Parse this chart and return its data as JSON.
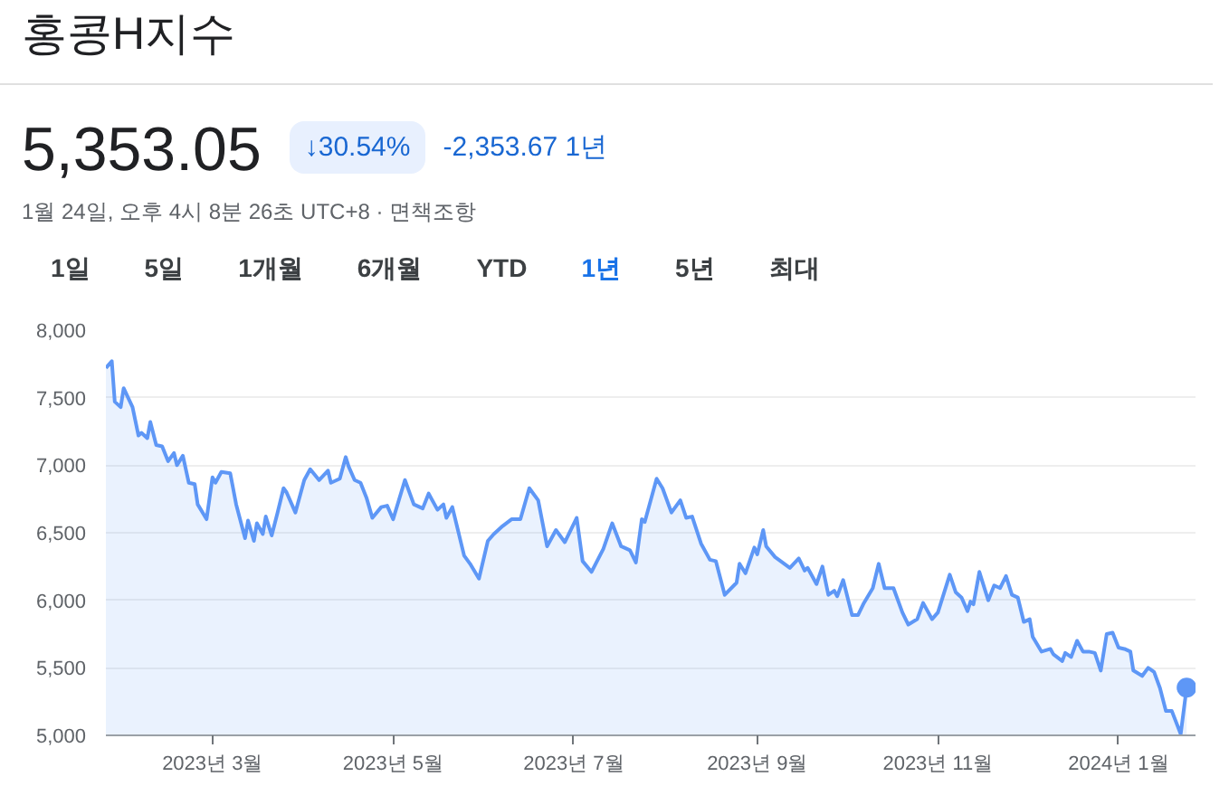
{
  "chart_data": {
    "type": "area",
    "title": "홍콩H지수",
    "subtitle": "1월 24일, 오후 4시 8분 26초 UTC+8 · 면책조항",
    "annotations": [
      "5,353.05",
      "↓30.54%",
      "-2,353.67 1년",
      "1일",
      "5일",
      "1개월",
      "6개월",
      "YTD",
      "1년",
      "5년",
      "최대"
    ],
    "x": [
      "2023-01-24",
      "2023-01-26",
      "2023-01-27",
      "2023-01-29",
      "2023-01-30",
      "2023-02-02",
      "2023-02-04",
      "2023-02-05",
      "2023-02-07",
      "2023-02-08",
      "2023-02-10",
      "2023-02-12",
      "2023-02-14",
      "2023-02-16",
      "2023-02-17",
      "2023-02-19",
      "2023-02-21",
      "2023-02-23",
      "2023-02-24",
      "2023-02-27",
      "2023-03-01",
      "2023-03-02",
      "2023-03-04",
      "2023-03-07",
      "2023-03-09",
      "2023-03-12",
      "2023-03-13",
      "2023-03-15",
      "2023-03-16",
      "2023-03-18",
      "2023-03-19",
      "2023-03-21",
      "2023-03-23",
      "2023-03-25",
      "2023-03-26",
      "2023-03-29",
      "2023-04-01",
      "2023-04-03",
      "2023-04-06",
      "2023-04-09",
      "2023-04-10",
      "2023-04-13",
      "2023-04-15",
      "2023-04-16",
      "2023-04-18",
      "2023-04-20",
      "2023-04-22",
      "2023-04-24",
      "2023-04-27",
      "2023-04-29",
      "2023-05-01",
      "2023-05-05",
      "2023-05-08",
      "2023-05-11",
      "2023-05-13",
      "2023-05-16",
      "2023-05-18",
      "2023-05-19",
      "2023-05-21",
      "2023-05-25",
      "2023-05-27",
      "2023-05-30",
      "2023-06-02",
      "2023-06-04",
      "2023-06-07",
      "2023-06-10",
      "2023-06-13",
      "2023-06-16",
      "2023-06-19",
      "2023-06-22",
      "2023-06-25",
      "2023-06-28",
      "2023-07-02",
      "2023-07-04",
      "2023-07-07",
      "2023-07-11",
      "2023-07-14",
      "2023-07-17",
      "2023-07-20",
      "2023-07-22",
      "2023-07-24",
      "2023-07-25",
      "2023-07-29",
      "2023-07-31",
      "2023-08-03",
      "2023-08-06",
      "2023-08-08",
      "2023-08-10",
      "2023-08-13",
      "2023-08-16",
      "2023-08-18",
      "2023-08-21",
      "2023-08-25",
      "2023-08-26",
      "2023-08-28",
      "2023-08-31",
      "2023-09-01",
      "2023-09-03",
      "2023-09-04",
      "2023-09-07",
      "2023-09-12",
      "2023-09-15",
      "2023-09-17",
      "2023-09-18",
      "2023-09-21",
      "2023-09-23",
      "2023-09-25",
      "2023-09-27",
      "2023-09-28",
      "2023-09-30",
      "2023-10-03",
      "2023-10-05",
      "2023-10-07",
      "2023-10-10",
      "2023-10-12",
      "2023-10-14",
      "2023-10-17",
      "2023-10-20",
      "2023-10-22",
      "2023-10-25",
      "2023-10-27",
      "2023-10-30",
      "2023-11-01",
      "2023-11-05",
      "2023-11-07",
      "2023-11-09",
      "2023-11-11",
      "2023-11-12",
      "2023-11-13",
      "2023-11-15",
      "2023-11-18",
      "2023-11-20",
      "2023-11-22",
      "2023-11-24",
      "2023-11-26",
      "2023-11-28",
      "2023-11-30",
      "2023-12-02",
      "2023-12-03",
      "2023-12-06",
      "2023-12-09",
      "2023-12-10",
      "2023-12-13",
      "2023-12-14",
      "2023-12-16",
      "2023-12-18",
      "2023-12-20",
      "2023-12-22",
      "2023-12-24",
      "2023-12-26",
      "2023-12-28",
      "2023-12-30",
      "2024-01-01",
      "2024-01-03",
      "2024-01-05",
      "2024-01-06",
      "2024-01-09",
      "2024-01-11",
      "2024-01-13",
      "2024-01-15",
      "2024-01-17",
      "2024-01-19",
      "2024-01-22",
      "2024-01-24"
    ],
    "series": [
      {
        "color": "#5e97f6",
        "values": [
          7720,
          7770,
          7470,
          7430,
          7570,
          7430,
          7220,
          7240,
          7200,
          7320,
          7150,
          7140,
          7030,
          7090,
          7000,
          7070,
          6870,
          6860,
          6710,
          6600,
          6910,
          6870,
          6950,
          6940,
          6710,
          6460,
          6590,
          6440,
          6570,
          6490,
          6620,
          6480,
          6650,
          6830,
          6800,
          6650,
          6890,
          6970,
          6890,
          6960,
          6870,
          6900,
          7060,
          6990,
          6890,
          6870,
          6760,
          6610,
          6690,
          6700,
          6600,
          6890,
          6710,
          6680,
          6790,
          6670,
          6710,
          6610,
          6690,
          6330,
          6270,
          6160,
          6440,
          6490,
          6550,
          6600,
          6600,
          6830,
          6740,
          6400,
          6520,
          6430,
          6610,
          6290,
          6210,
          6380,
          6570,
          6400,
          6370,
          6280,
          6600,
          6580,
          6900,
          6830,
          6650,
          6740,
          6610,
          6620,
          6420,
          6300,
          6290,
          6040,
          6130,
          6270,
          6200,
          6390,
          6340,
          6520,
          6400,
          6320,
          6240,
          6310,
          6220,
          6240,
          6120,
          6250,
          6040,
          6070,
          6030,
          6150,
          5890,
          5890,
          5980,
          6090,
          6270,
          6090,
          6090,
          5910,
          5820,
          5860,
          5980,
          5860,
          5910,
          6190,
          6060,
          6020,
          5920,
          5990,
          5970,
          6210,
          6000,
          6110,
          6090,
          6180,
          6040,
          6020,
          5840,
          5860,
          5730,
          5620,
          5640,
          5600,
          5550,
          5610,
          5580,
          5700,
          5620,
          5620,
          5610,
          5480,
          5750,
          5760,
          5650,
          5640,
          5620,
          5480,
          5440,
          5500,
          5470,
          5350,
          5180,
          5180,
          5010,
          5353.05
        ]
      }
    ],
    "xlim": [
      "2023-01-24",
      "2024-01-27"
    ],
    "xticks": [
      {
        "value": "2023-03-01",
        "label": "2023년 3월"
      },
      {
        "value": "2023-05-01",
        "label": "2023년 5월"
      },
      {
        "value": "2023-07-01",
        "label": "2023년 7월"
      },
      {
        "value": "2023-09-01",
        "label": "2023년 9월"
      },
      {
        "value": "2023-11-01",
        "label": "2023년 11월"
      },
      {
        "value": "2024-01-01",
        "label": "2024년 1월"
      }
    ],
    "ylim": [
      5000,
      8000
    ],
    "yticks": [
      {
        "value": 5000,
        "label": "5,000"
      },
      {
        "value": 5500,
        "label": "5,500"
      },
      {
        "value": 6000,
        "label": "6,000"
      },
      {
        "value": 6500,
        "label": "6,500"
      },
      {
        "value": 7000,
        "label": "7,000"
      },
      {
        "value": 7500,
        "label": "7,500"
      },
      {
        "value": 8000,
        "label": "8,000"
      }
    ],
    "grid": "y"
  }
}
